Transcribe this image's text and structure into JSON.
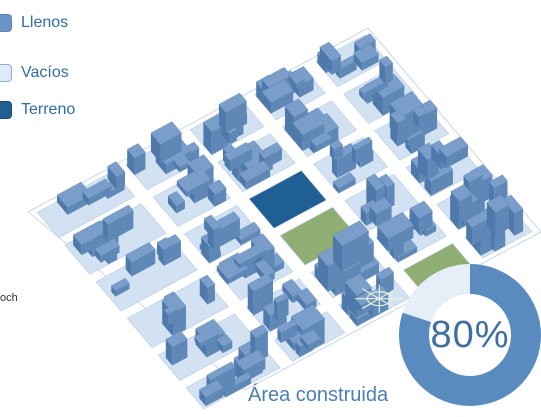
{
  "legend": {
    "items": [
      {
        "label": "Llenos",
        "color": "#6b93c4",
        "border": "#5d86b8"
      },
      {
        "label": "Vacíos",
        "color": "#dfeaf6",
        "border": "#8fb0d4"
      },
      {
        "label": "Terreno",
        "color": "#1f5f93",
        "border": "#184d7a"
      }
    ]
  },
  "side_text": "och",
  "stat": {
    "value_percent": 80,
    "label": "80%",
    "caption": "Área construida",
    "filled_color": "#5a8bbf",
    "empty_color": "#e6eff8"
  },
  "colors": {
    "street": "#ffffff",
    "block": "#d3e2f2",
    "building": "#7a9ec9",
    "building_dark": "#4f79aa",
    "park": "#8fae74",
    "terrain": "#1f5f93"
  }
}
